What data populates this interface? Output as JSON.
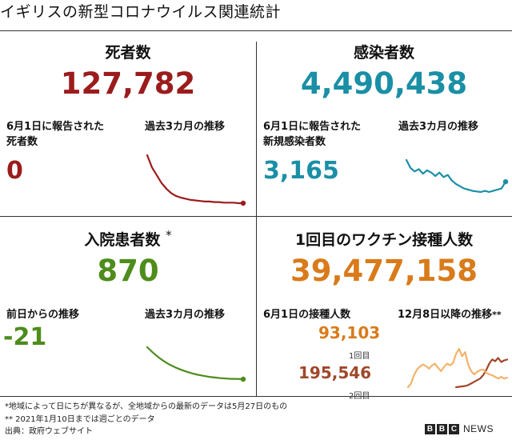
{
  "title": "イギリスの新型コロナウイルス関連統計",
  "deaths": {
    "title": "死者数",
    "total": "127,782",
    "daily_label_1": "6月1日に報告された",
    "daily_label_2": "死者数",
    "daily_value": "0",
    "trend_label": "過去3カ月の推移",
    "color": "#9b1c1c"
  },
  "cases": {
    "title": "感染者数",
    "total": "4,490,438",
    "daily_label_1": "6月1日に報告された",
    "daily_label_2": "新規感染者数",
    "daily_value": "3,165",
    "trend_label": "過去3カ月の推移",
    "color": "#1a8fa6"
  },
  "hospital": {
    "title": "入院患者数",
    "title_mark": "*",
    "total": "870",
    "change_label": "前日からの推移",
    "change_value": "-21",
    "trend_label": "過去3カ月の推移",
    "color": "#4e8c1c"
  },
  "vaccine": {
    "title": "1回目のワクチン接種人数",
    "total": "39,477,158",
    "daily_label": "6月1日の接種人数",
    "first_dose_value": "93,103",
    "first_dose_label": "1回目",
    "second_dose_value": "195,546",
    "second_dose_label": "2回目",
    "trend_label": "12月8日以降の推移",
    "trend_mark": "**",
    "color": "#d97b1a",
    "first_dose_color": "#f2b36b",
    "second_dose_color": "#a0472a"
  },
  "footnotes": {
    "note1": "*地域によって日にちが異なるが、全地域からの最新のデータは5月27日のもの",
    "note2": "** 2021年1月10日までは週ごとのデータ",
    "source": "出典：政府ウェブサイト"
  },
  "brand": {
    "letters": [
      "B",
      "B",
      "C"
    ],
    "news": "NEWS"
  },
  "chart_data": [
    {
      "type": "line",
      "name": "deaths-trend",
      "values": [
        100,
        78,
        64,
        50,
        40,
        32,
        27,
        24,
        22,
        20,
        19,
        18,
        17,
        17,
        16,
        16,
        15,
        15,
        15,
        14,
        14
      ],
      "end_marker": true,
      "color": "#9b1c1c"
    },
    {
      "type": "line",
      "name": "cases-trend",
      "values": [
        88,
        74,
        68,
        72,
        64,
        70,
        66,
        60,
        66,
        58,
        62,
        52,
        46,
        42,
        38,
        36,
        34,
        33,
        32,
        34,
        32,
        34,
        36,
        38,
        50
      ],
      "end_marker": true,
      "color": "#1a8fa6"
    },
    {
      "type": "line",
      "name": "hospital-trend",
      "values": [
        100,
        84,
        70,
        58,
        48,
        40,
        33,
        27,
        22,
        18,
        15,
        12,
        10,
        8,
        7,
        6,
        6,
        5
      ],
      "end_marker": true,
      "color": "#4e8c1c"
    },
    {
      "type": "line",
      "name": "vaccine-trend",
      "series": [
        {
          "values": [
            null,
            null,
            null,
            null,
            null,
            null,
            null,
            null,
            null,
            null,
            null,
            null,
            null,
            null,
            null,
            null,
            5,
            6,
            7,
            8,
            10,
            14,
            18,
            22,
            26,
            34,
            46,
            62,
            72,
            68,
            76,
            66,
            70,
            72
          ]
        },
        {
          "values": [
            5,
            14,
            34,
            48,
            55,
            60,
            56,
            50,
            58,
            62,
            52,
            44,
            54,
            62,
            58,
            64,
            86,
            98,
            80,
            90,
            60,
            44,
            36,
            42,
            46,
            48,
            40,
            36,
            34,
            30,
            26,
            30,
            26,
            28
          ]
        }
      ],
      "colors": [
        "#a0472a",
        "#f2b36b"
      ]
    }
  ]
}
